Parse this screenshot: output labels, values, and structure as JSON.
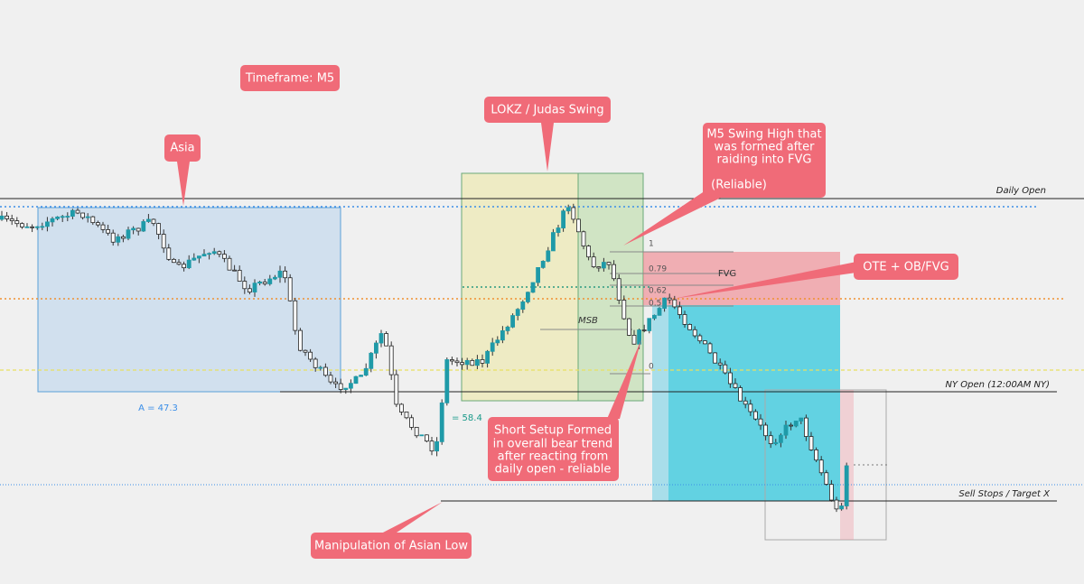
{
  "callouts": {
    "timeframe": "Timeframe: M5",
    "asia": "Asia",
    "lokz": "LOKZ / Judas Swing",
    "swing_high": [
      "M5 Swing High that",
      "was formed after",
      "raiding into FVG",
      "(Reliable)"
    ],
    "ote": "OTE + OB/FVG",
    "short_setup": [
      "Short Setup Formed",
      "in overall bear trend",
      "after reacting from",
      "daily open - reliable"
    ],
    "manipulation": "Manipulation of Asian Low"
  },
  "lines": {
    "daily_open": "Daily Open",
    "ny_open": "NY Open (12:00AM NY)",
    "sell_stops": "Sell Stops / Target X"
  },
  "measurements": {
    "asia_range": "A = 47.3",
    "manipulation_range": "= 58.4"
  },
  "labels": {
    "fvg": "FVG",
    "msb": "MSB"
  },
  "fib_levels": [
    "1",
    "0.79",
    "0.62",
    "0.5",
    "0"
  ]
}
